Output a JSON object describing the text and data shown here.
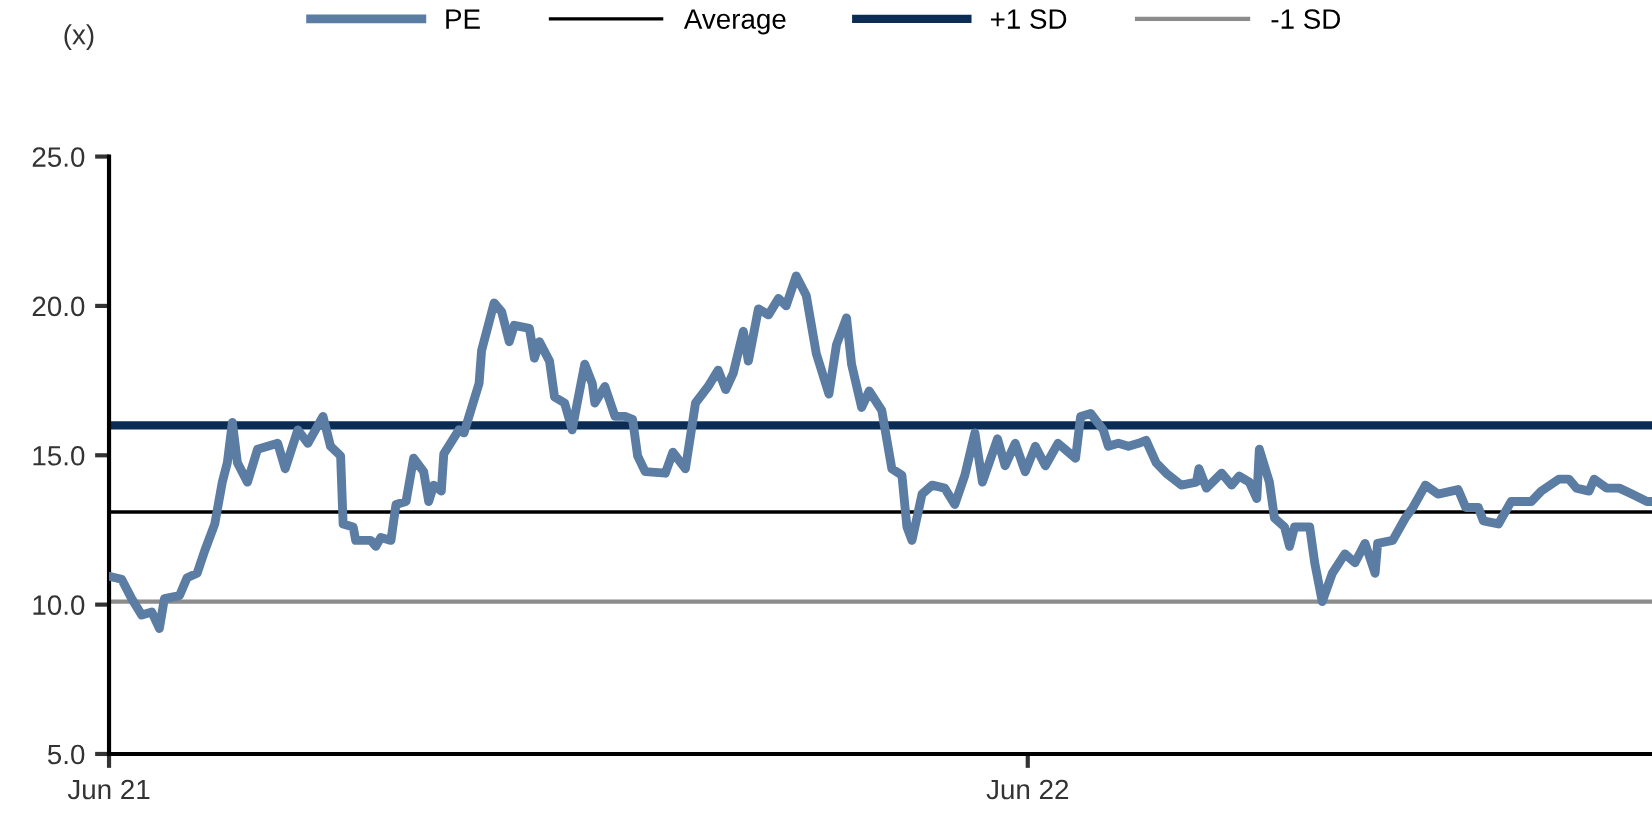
{
  "chart_data": {
    "type": "line",
    "ylabel": "(x)",
    "legend": "top",
    "grid": false,
    "marker": "none",
    "line_style": "solid",
    "xlim": [
      "2021-06-01",
      "2023-02-04"
    ],
    "xticks": [
      {
        "value": "2021-06-01",
        "label": "Jun 21"
      },
      {
        "value": "2022-06-01",
        "label": "Jun 22"
      }
    ],
    "ylim": [
      5,
      25
    ],
    "yticks": [
      {
        "value": 5,
        "label": "5.0"
      },
      {
        "value": 10,
        "label": "10.0"
      },
      {
        "value": 15,
        "label": "15.0"
      },
      {
        "value": 20,
        "label": "20.0"
      },
      {
        "value": 25,
        "label": "25.0"
      }
    ],
    "x": [
      "2021-06-01",
      "2021-06-06",
      "2021-06-10",
      "2021-06-14",
      "2021-06-18",
      "2021-06-21",
      "2021-06-23",
      "2021-06-29",
      "2021-07-02",
      "2021-07-06",
      "2021-07-09",
      "2021-07-13",
      "2021-07-16",
      "2021-07-18",
      "2021-07-20",
      "2021-07-22",
      "2021-07-26",
      "2021-07-30",
      "2021-08-07",
      "2021-08-10",
      "2021-08-15",
      "2021-08-19",
      "2021-08-25",
      "2021-08-28",
      "2021-09-01",
      "2021-09-02",
      "2021-09-06",
      "2021-09-07",
      "2021-09-13",
      "2021-09-15",
      "2021-09-17",
      "2021-09-21",
      "2021-09-23",
      "2021-09-27",
      "2021-09-30",
      "2021-10-04",
      "2021-10-06",
      "2021-10-08",
      "2021-10-11",
      "2021-10-12",
      "2021-10-18",
      "2021-10-20",
      "2021-10-26",
      "2021-10-27",
      "2021-11-01",
      "2021-11-04",
      "2021-11-07",
      "2021-11-09",
      "2021-11-15",
      "2021-11-17",
      "2021-11-19",
      "2021-11-23",
      "2021-11-25",
      "2021-11-29",
      "2021-12-02",
      "2021-12-04",
      "2021-12-07",
      "2021-12-10",
      "2021-12-11",
      "2021-12-15",
      "2021-12-19",
      "2021-12-23",
      "2021-12-26",
      "2021-12-28",
      "2021-12-31",
      "2022-01-08",
      "2022-01-11",
      "2022-01-16",
      "2022-01-20",
      "2022-01-25",
      "2022-01-29",
      "2022-02-01",
      "2022-02-04",
      "2022-02-08",
      "2022-02-10",
      "2022-02-14",
      "2022-02-18",
      "2022-02-22",
      "2022-02-25",
      "2022-03-01",
      "2022-03-05",
      "2022-03-09",
      "2022-03-14",
      "2022-03-17",
      "2022-03-21",
      "2022-03-23",
      "2022-03-27",
      "2022-03-30",
      "2022-04-04",
      "2022-04-08",
      "2022-04-12",
      "2022-04-14",
      "2022-04-16",
      "2022-04-20",
      "2022-04-24",
      "2022-04-29",
      "2022-05-03",
      "2022-05-07",
      "2022-05-11",
      "2022-05-14",
      "2022-05-20",
      "2022-05-23",
      "2022-05-27",
      "2022-05-31",
      "2022-06-04",
      "2022-06-08",
      "2022-06-13",
      "2022-06-20",
      "2022-06-22",
      "2022-06-26",
      "2022-07-01",
      "2022-07-03",
      "2022-07-07",
      "2022-07-11",
      "2022-07-15",
      "2022-07-18",
      "2022-07-22",
      "2022-07-26",
      "2022-08-01",
      "2022-08-07",
      "2022-08-08",
      "2022-08-11",
      "2022-08-17",
      "2022-08-21",
      "2022-08-24",
      "2022-08-28",
      "2022-08-31",
      "2022-09-01",
      "2022-09-05",
      "2022-09-07",
      "2022-09-11",
      "2022-09-13",
      "2022-09-15",
      "2022-09-21",
      "2022-09-23",
      "2022-09-26",
      "2022-09-30",
      "2022-10-05",
      "2022-10-09",
      "2022-10-13",
      "2022-10-17",
      "2022-10-18",
      "2022-10-24",
      "2022-10-29",
      "2022-11-01",
      "2022-11-06",
      "2022-11-11",
      "2022-11-19",
      "2022-11-22",
      "2022-11-27",
      "2022-11-29",
      "2022-12-05",
      "2022-12-10",
      "2022-12-18",
      "2022-12-22",
      "2022-12-29",
      "2023-01-02",
      "2023-01-05",
      "2023-01-10",
      "2023-01-12",
      "2023-01-17",
      "2023-01-22",
      "2023-01-27",
      "2023-02-02",
      "2023-02-04"
    ],
    "series": [
      {
        "name": "PE",
        "color": "#5b7ca3",
        "values": [
          10.95,
          10.85,
          10.2,
          9.65,
          9.75,
          9.2,
          10.2,
          10.3,
          10.9,
          11.05,
          11.8,
          12.7,
          14.1,
          14.75,
          16.1,
          14.75,
          14.1,
          15.2,
          15.4,
          14.55,
          15.85,
          15.4,
          16.3,
          15.3,
          14.98,
          12.7,
          12.6,
          12.15,
          12.15,
          11.95,
          12.25,
          12.15,
          13.35,
          13.45,
          14.9,
          14.45,
          13.45,
          14.0,
          13.8,
          15.05,
          15.85,
          15.75,
          17.4,
          18.5,
          20.1,
          19.8,
          18.8,
          19.35,
          19.25,
          18.25,
          18.8,
          18.15,
          16.95,
          16.75,
          15.85,
          16.75,
          18.05,
          17.4,
          16.75,
          17.3,
          16.3,
          16.3,
          16.2,
          14.98,
          14.45,
          14.4,
          15.1,
          14.55,
          16.75,
          17.3,
          17.85,
          17.2,
          17.75,
          19.15,
          18.15,
          19.9,
          19.7,
          20.25,
          20.0,
          21.0,
          20.35,
          18.4,
          17.05,
          18.7,
          19.6,
          18.05,
          16.6,
          17.15,
          16.5,
          14.55,
          14.33,
          12.6,
          12.15,
          13.7,
          14.0,
          13.9,
          13.35,
          14.33,
          15.75,
          14.1,
          15.55,
          14.65,
          15.4,
          14.45,
          15.3,
          14.65,
          15.4,
          14.9,
          16.3,
          16.4,
          15.85,
          15.3,
          15.4,
          15.3,
          15.4,
          15.5,
          14.75,
          14.4,
          14.0,
          14.1,
          14.55,
          13.9,
          14.4,
          14.0,
          14.3,
          14.1,
          13.55,
          15.2,
          14.1,
          12.9,
          12.6,
          11.95,
          12.6,
          12.6,
          11.4,
          10.1,
          11.05,
          11.7,
          11.4,
          12.05,
          11.05,
          12.05,
          12.15,
          12.9,
          13.25,
          14.0,
          13.7,
          13.85,
          13.25,
          13.25,
          12.8,
          12.7,
          13.45,
          13.45,
          13.8,
          14.2,
          14.2,
          13.9,
          13.8,
          14.2,
          13.9,
          13.9,
          13.7,
          13.45,
          13.45
        ]
      }
    ],
    "ref_lines": [
      {
        "axis": "y",
        "value": 13.1,
        "label": "Average",
        "color": "#000000"
      },
      {
        "axis": "y",
        "value": 16.0,
        "label": "+1 SD",
        "color": "#0b2d55"
      },
      {
        "axis": "y",
        "value": 10.1,
        "label": "-1 SD",
        "color": "#8c8c8c"
      }
    ]
  }
}
